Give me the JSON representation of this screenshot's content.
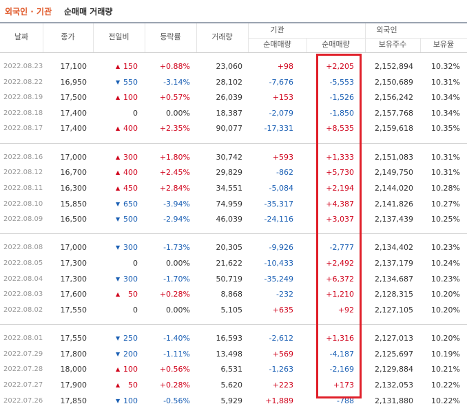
{
  "title": {
    "highlight": "외국인 · 기관",
    "rest": "순매매 거래량"
  },
  "header": {
    "date": "날짜",
    "close": "종가",
    "change": "전일비",
    "rate": "등락률",
    "volume": "거래량",
    "institution": "기관",
    "foreigner": "외국인",
    "inst_net": "순매매량",
    "foreign_net": "순매매량",
    "shares": "보유주수",
    "ratio": "보유율"
  },
  "groups": [
    [
      {
        "date": "2022.08.23",
        "close": "17,100",
        "arrow": "▲",
        "change": "150",
        "rate": "+0.88%",
        "volume": "23,060",
        "inst": "+98",
        "foreign": "+2,205",
        "shares": "2,152,894",
        "ratio": "10.32%"
      },
      {
        "date": "2022.08.22",
        "close": "16,950",
        "arrow": "▼",
        "change": "550",
        "rate": "-3.14%",
        "volume": "28,102",
        "inst": "-7,676",
        "foreign": "-5,553",
        "shares": "2,150,689",
        "ratio": "10.31%"
      },
      {
        "date": "2022.08.19",
        "close": "17,500",
        "arrow": "▲",
        "change": "100",
        "rate": "+0.57%",
        "volume": "26,039",
        "inst": "+153",
        "foreign": "-1,526",
        "shares": "2,156,242",
        "ratio": "10.34%"
      },
      {
        "date": "2022.08.18",
        "close": "17,400",
        "change": "0",
        "rate": "0.00%",
        "volume": "18,387",
        "inst": "-2,079",
        "foreign": "-1,850",
        "shares": "2,157,768",
        "ratio": "10.34%"
      },
      {
        "date": "2022.08.17",
        "close": "17,400",
        "arrow": "▲",
        "change": "400",
        "rate": "+2.35%",
        "volume": "90,077",
        "inst": "-17,331",
        "foreign": "+8,535",
        "shares": "2,159,618",
        "ratio": "10.35%"
      }
    ],
    [
      {
        "date": "2022.08.16",
        "close": "17,000",
        "arrow": "▲",
        "change": "300",
        "rate": "+1.80%",
        "volume": "30,742",
        "inst": "+593",
        "foreign": "+1,333",
        "shares": "2,151,083",
        "ratio": "10.31%"
      },
      {
        "date": "2022.08.12",
        "close": "16,700",
        "arrow": "▲",
        "change": "400",
        "rate": "+2.45%",
        "volume": "29,829",
        "inst": "-862",
        "foreign": "+5,730",
        "shares": "2,149,750",
        "ratio": "10.31%"
      },
      {
        "date": "2022.08.11",
        "close": "16,300",
        "arrow": "▲",
        "change": "450",
        "rate": "+2.84%",
        "volume": "34,551",
        "inst": "-5,084",
        "foreign": "+2,194",
        "shares": "2,144,020",
        "ratio": "10.28%"
      },
      {
        "date": "2022.08.10",
        "close": "15,850",
        "arrow": "▼",
        "change": "650",
        "rate": "-3.94%",
        "volume": "74,959",
        "inst": "-35,317",
        "foreign": "+4,387",
        "shares": "2,141,826",
        "ratio": "10.27%"
      },
      {
        "date": "2022.08.09",
        "close": "16,500",
        "arrow": "▼",
        "change": "500",
        "rate": "-2.94%",
        "volume": "46,039",
        "inst": "-24,116",
        "foreign": "+3,037",
        "shares": "2,137,439",
        "ratio": "10.25%"
      }
    ],
    [
      {
        "date": "2022.08.08",
        "close": "17,000",
        "arrow": "▼",
        "change": "300",
        "rate": "-1.73%",
        "volume": "20,305",
        "inst": "-9,926",
        "foreign": "-2,777",
        "shares": "2,134,402",
        "ratio": "10.23%"
      },
      {
        "date": "2022.08.05",
        "close": "17,300",
        "change": "0",
        "rate": "0.00%",
        "volume": "21,622",
        "inst": "-10,433",
        "foreign": "+2,492",
        "shares": "2,137,179",
        "ratio": "10.24%"
      },
      {
        "date": "2022.08.04",
        "close": "17,300",
        "arrow": "▼",
        "change": "300",
        "rate": "-1.70%",
        "volume": "50,719",
        "inst": "-35,249",
        "foreign": "+6,372",
        "shares": "2,134,687",
        "ratio": "10.23%"
      },
      {
        "date": "2022.08.03",
        "close": "17,600",
        "arrow": "▲",
        "change": "50",
        "rate": "+0.28%",
        "volume": "8,868",
        "inst": "-232",
        "foreign": "+1,210",
        "shares": "2,128,315",
        "ratio": "10.20%"
      },
      {
        "date": "2022.08.02",
        "close": "17,550",
        "change": "0",
        "rate": "0.00%",
        "volume": "5,105",
        "inst": "+635",
        "foreign": "+92",
        "shares": "2,127,105",
        "ratio": "10.20%"
      }
    ],
    [
      {
        "date": "2022.08.01",
        "close": "17,550",
        "arrow": "▼",
        "change": "250",
        "rate": "-1.40%",
        "volume": "16,593",
        "inst": "-2,612",
        "foreign": "+1,316",
        "shares": "2,127,013",
        "ratio": "10.20%"
      },
      {
        "date": "2022.07.29",
        "close": "17,800",
        "arrow": "▼",
        "change": "200",
        "rate": "-1.11%",
        "volume": "13,498",
        "inst": "+569",
        "foreign": "-4,187",
        "shares": "2,125,697",
        "ratio": "10.19%"
      },
      {
        "date": "2022.07.28",
        "close": "18,000",
        "arrow": "▲",
        "change": "100",
        "rate": "+0.56%",
        "volume": "6,531",
        "inst": "-1,263",
        "foreign": "-2,169",
        "shares": "2,129,884",
        "ratio": "10.21%"
      },
      {
        "date": "2022.07.27",
        "close": "17,900",
        "arrow": "▲",
        "change": "50",
        "rate": "+0.28%",
        "volume": "5,620",
        "inst": "+223",
        "foreign": "+173",
        "shares": "2,132,053",
        "ratio": "10.22%"
      },
      {
        "date": "2022.07.26",
        "close": "17,850",
        "arrow": "▼",
        "change": "100",
        "rate": "-0.56%",
        "volume": "5,929",
        "inst": "+1,889",
        "foreign": "-788",
        "shares": "2,131,880",
        "ratio": "10.22%"
      }
    ]
  ]
}
